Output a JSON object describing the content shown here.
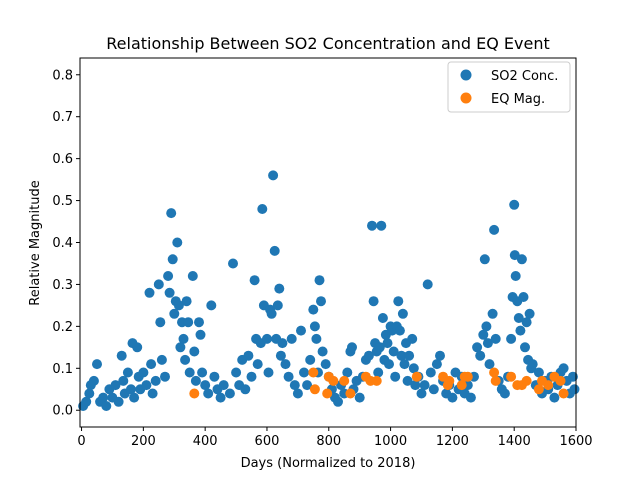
{
  "chart_data": {
    "type": "scatter",
    "title": "Relationship Between SO2 Concentration and EQ Event",
    "xlabel": "Days (Normalized to 2018)",
    "ylabel": "Relative Magnitude",
    "xlim": [
      -5,
      1600
    ],
    "ylim": [
      -0.04,
      0.84
    ],
    "xticks": [
      0,
      200,
      400,
      600,
      800,
      1000,
      1200,
      1400,
      1600
    ],
    "xtick_labels": [
      "0",
      "200",
      "400",
      "600",
      "800",
      "1000",
      "1200",
      "1400",
      "1600"
    ],
    "yticks": [
      0.0,
      0.1,
      0.2,
      0.3,
      0.4,
      0.5,
      0.6,
      0.7,
      0.8
    ],
    "ytick_labels": [
      "0.0",
      "0.1",
      "0.2",
      "0.3",
      "0.4",
      "0.5",
      "0.6",
      "0.7",
      "0.8"
    ],
    "legend_position": "top-right",
    "grid": false,
    "series": [
      {
        "name": "SO2 Conc.",
        "color": "#1f77b4",
        "points": [
          [
            5,
            0.01
          ],
          [
            15,
            0.02
          ],
          [
            25,
            0.04
          ],
          [
            30,
            0.06
          ],
          [
            40,
            0.07
          ],
          [
            50,
            0.11
          ],
          [
            60,
            0.02
          ],
          [
            70,
            0.03
          ],
          [
            80,
            0.01
          ],
          [
            90,
            0.05
          ],
          [
            100,
            0.03
          ],
          [
            110,
            0.06
          ],
          [
            120,
            0.02
          ],
          [
            130,
            0.13
          ],
          [
            135,
            0.07
          ],
          [
            140,
            0.04
          ],
          [
            150,
            0.09
          ],
          [
            160,
            0.05
          ],
          [
            165,
            0.16
          ],
          [
            170,
            0.03
          ],
          [
            180,
            0.15
          ],
          [
            185,
            0.08
          ],
          [
            190,
            0.05
          ],
          [
            200,
            0.09
          ],
          [
            210,
            0.06
          ],
          [
            220,
            0.28
          ],
          [
            225,
            0.11
          ],
          [
            230,
            0.04
          ],
          [
            240,
            0.07
          ],
          [
            250,
            0.3
          ],
          [
            255,
            0.21
          ],
          [
            260,
            0.12
          ],
          [
            270,
            0.08
          ],
          [
            280,
            0.32
          ],
          [
            285,
            0.28
          ],
          [
            290,
            0.47
          ],
          [
            295,
            0.36
          ],
          [
            300,
            0.23
          ],
          [
            305,
            0.26
          ],
          [
            310,
            0.4
          ],
          [
            315,
            0.25
          ],
          [
            320,
            0.15
          ],
          [
            325,
            0.21
          ],
          [
            330,
            0.17
          ],
          [
            335,
            0.12
          ],
          [
            340,
            0.26
          ],
          [
            345,
            0.21
          ],
          [
            350,
            0.09
          ],
          [
            360,
            0.32
          ],
          [
            365,
            0.14
          ],
          [
            370,
            0.07
          ],
          [
            380,
            0.21
          ],
          [
            385,
            0.18
          ],
          [
            390,
            0.09
          ],
          [
            400,
            0.06
          ],
          [
            410,
            0.04
          ],
          [
            420,
            0.25
          ],
          [
            430,
            0.08
          ],
          [
            440,
            0.05
          ],
          [
            450,
            0.03
          ],
          [
            460,
            0.06
          ],
          [
            480,
            0.04
          ],
          [
            490,
            0.35
          ],
          [
            500,
            0.09
          ],
          [
            510,
            0.06
          ],
          [
            520,
            0.12
          ],
          [
            530,
            0.05
          ],
          [
            540,
            0.13
          ],
          [
            550,
            0.08
          ],
          [
            560,
            0.31
          ],
          [
            565,
            0.17
          ],
          [
            570,
            0.11
          ],
          [
            580,
            0.16
          ],
          [
            585,
            0.48
          ],
          [
            590,
            0.25
          ],
          [
            600,
            0.17
          ],
          [
            605,
            0.09
          ],
          [
            610,
            0.24
          ],
          [
            615,
            0.23
          ],
          [
            620,
            0.56
          ],
          [
            625,
            0.38
          ],
          [
            630,
            0.17
          ],
          [
            635,
            0.25
          ],
          [
            640,
            0.29
          ],
          [
            645,
            0.13
          ],
          [
            650,
            0.16
          ],
          [
            660,
            0.11
          ],
          [
            670,
            0.08
          ],
          [
            680,
            0.17
          ],
          [
            690,
            0.06
          ],
          [
            700,
            0.04
          ],
          [
            710,
            0.19
          ],
          [
            720,
            0.09
          ],
          [
            730,
            0.06
          ],
          [
            740,
            0.12
          ],
          [
            750,
            0.24
          ],
          [
            755,
            0.2
          ],
          [
            760,
            0.17
          ],
          [
            765,
            0.09
          ],
          [
            770,
            0.31
          ],
          [
            775,
            0.26
          ],
          [
            780,
            0.14
          ],
          [
            790,
            0.11
          ],
          [
            800,
            0.08
          ],
          [
            810,
            0.05
          ],
          [
            820,
            0.03
          ],
          [
            830,
            0.02
          ],
          [
            840,
            0.06
          ],
          [
            850,
            0.04
          ],
          [
            860,
            0.09
          ],
          [
            870,
            0.14
          ],
          [
            875,
            0.15
          ],
          [
            880,
            0.05
          ],
          [
            890,
            0.07
          ],
          [
            900,
            0.03
          ],
          [
            910,
            0.08
          ],
          [
            920,
            0.12
          ],
          [
            930,
            0.13
          ],
          [
            940,
            0.44
          ],
          [
            945,
            0.26
          ],
          [
            950,
            0.16
          ],
          [
            955,
            0.14
          ],
          [
            960,
            0.09
          ],
          [
            965,
            0.15
          ],
          [
            970,
            0.44
          ],
          [
            975,
            0.22
          ],
          [
            980,
            0.12
          ],
          [
            985,
            0.18
          ],
          [
            990,
            0.16
          ],
          [
            995,
            0.11
          ],
          [
            1000,
            0.2
          ],
          [
            1005,
            0.19
          ],
          [
            1010,
            0.14
          ],
          [
            1015,
            0.08
          ],
          [
            1020,
            0.2
          ],
          [
            1025,
            0.26
          ],
          [
            1030,
            0.19
          ],
          [
            1035,
            0.13
          ],
          [
            1040,
            0.23
          ],
          [
            1045,
            0.11
          ],
          [
            1050,
            0.16
          ],
          [
            1055,
            0.07
          ],
          [
            1060,
            0.13
          ],
          [
            1070,
            0.17
          ],
          [
            1075,
            0.1
          ],
          [
            1080,
            0.06
          ],
          [
            1090,
            0.08
          ],
          [
            1100,
            0.04
          ],
          [
            1110,
            0.06
          ],
          [
            1120,
            0.3
          ],
          [
            1130,
            0.09
          ],
          [
            1140,
            0.05
          ],
          [
            1150,
            0.11
          ],
          [
            1160,
            0.13
          ],
          [
            1170,
            0.07
          ],
          [
            1180,
            0.04
          ],
          [
            1190,
            0.06
          ],
          [
            1200,
            0.03
          ],
          [
            1210,
            0.09
          ],
          [
            1220,
            0.05
          ],
          [
            1230,
            0.08
          ],
          [
            1240,
            0.04
          ],
          [
            1250,
            0.06
          ],
          [
            1260,
            0.03
          ],
          [
            1270,
            0.08
          ],
          [
            1280,
            0.15
          ],
          [
            1290,
            0.13
          ],
          [
            1300,
            0.18
          ],
          [
            1305,
            0.36
          ],
          [
            1310,
            0.2
          ],
          [
            1315,
            0.16
          ],
          [
            1320,
            0.11
          ],
          [
            1330,
            0.23
          ],
          [
            1335,
            0.43
          ],
          [
            1340,
            0.17
          ],
          [
            1350,
            0.07
          ],
          [
            1360,
            0.05
          ],
          [
            1370,
            0.04
          ],
          [
            1380,
            0.08
          ],
          [
            1390,
            0.17
          ],
          [
            1395,
            0.27
          ],
          [
            1400,
            0.49
          ],
          [
            1402,
            0.37
          ],
          [
            1405,
            0.32
          ],
          [
            1410,
            0.26
          ],
          [
            1415,
            0.22
          ],
          [
            1420,
            0.19
          ],
          [
            1425,
            0.36
          ],
          [
            1430,
            0.27
          ],
          [
            1435,
            0.15
          ],
          [
            1440,
            0.21
          ],
          [
            1445,
            0.12
          ],
          [
            1450,
            0.23
          ],
          [
            1455,
            0.1
          ],
          [
            1460,
            0.11
          ],
          [
            1470,
            0.06
          ],
          [
            1480,
            0.09
          ],
          [
            1490,
            0.04
          ],
          [
            1500,
            0.07
          ],
          [
            1510,
            0.05
          ],
          [
            1520,
            0.08
          ],
          [
            1530,
            0.03
          ],
          [
            1540,
            0.06
          ],
          [
            1550,
            0.09
          ],
          [
            1560,
            0.1
          ],
          [
            1570,
            0.07
          ],
          [
            1580,
            0.04
          ],
          [
            1590,
            0.08
          ],
          [
            1595,
            0.05
          ]
        ]
      },
      {
        "name": "EQ Mag.",
        "color": "#ff7f0e",
        "points": [
          [
            365,
            0.04
          ],
          [
            750,
            0.09
          ],
          [
            755,
            0.05
          ],
          [
            795,
            0.04
          ],
          [
            800,
            0.08
          ],
          [
            815,
            0.07
          ],
          [
            850,
            0.07
          ],
          [
            870,
            0.04
          ],
          [
            920,
            0.08
          ],
          [
            935,
            0.07
          ],
          [
            955,
            0.07
          ],
          [
            1085,
            0.08
          ],
          [
            1170,
            0.08
          ],
          [
            1185,
            0.06
          ],
          [
            1190,
            0.07
          ],
          [
            1230,
            0.06
          ],
          [
            1240,
            0.08
          ],
          [
            1250,
            0.08
          ],
          [
            1335,
            0.09
          ],
          [
            1340,
            0.07
          ],
          [
            1390,
            0.08
          ],
          [
            1410,
            0.06
          ],
          [
            1425,
            0.06
          ],
          [
            1440,
            0.07
          ],
          [
            1480,
            0.05
          ],
          [
            1490,
            0.07
          ],
          [
            1510,
            0.06
          ],
          [
            1530,
            0.08
          ],
          [
            1550,
            0.07
          ],
          [
            1560,
            0.04
          ]
        ]
      }
    ]
  }
}
